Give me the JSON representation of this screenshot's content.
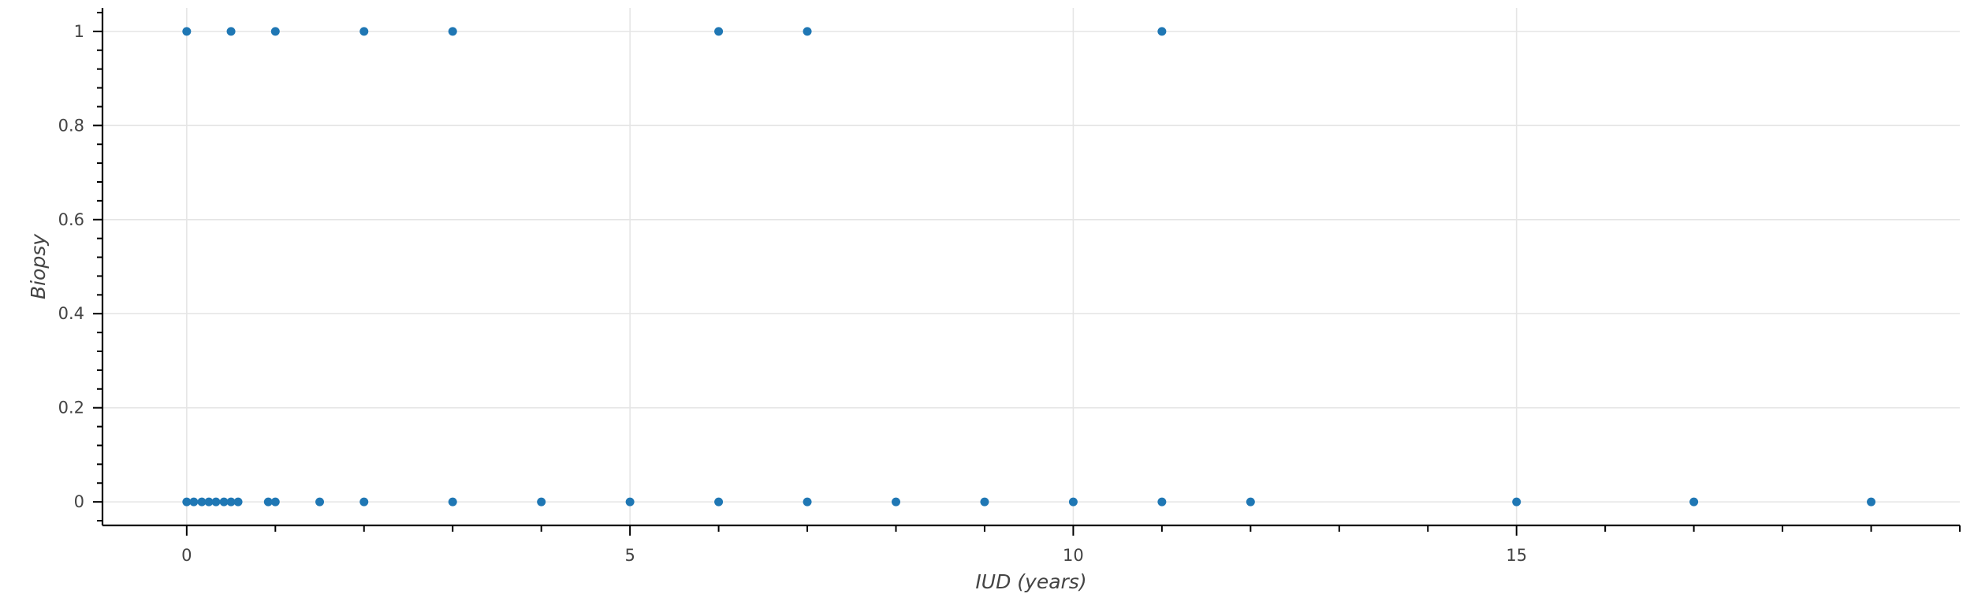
{
  "chart_data": {
    "type": "scatter",
    "title": "",
    "xlabel": "IUD (years)",
    "ylabel": "Biopsy",
    "xlim": [
      -0.95,
      20.0
    ],
    "ylim": [
      -0.05,
      1.05
    ],
    "x_ticks": [
      0,
      5,
      10,
      15
    ],
    "x_minor_step": 1,
    "y_ticks": [
      0,
      0.2,
      0.4,
      0.6,
      0.8,
      1
    ],
    "y_minor_step": 0.04,
    "grid": true,
    "legend": "none",
    "marker_color": "#1f77b4",
    "series": [
      {
        "x": [
          0,
          0.08,
          0.17,
          0.25,
          0.33,
          0.42,
          0.5,
          0.58,
          0.92,
          1,
          1.5,
          2,
          3,
          4,
          5,
          6,
          7,
          8,
          9,
          10,
          11,
          12,
          15,
          17,
          19,
          0,
          0.5,
          1,
          2,
          3,
          6,
          7,
          11
        ],
        "y": [
          0,
          0,
          0,
          0,
          0,
          0,
          0,
          0,
          0,
          0,
          0,
          0,
          0,
          0,
          0,
          0,
          0,
          0,
          0,
          0,
          0,
          0,
          0,
          0,
          0,
          1,
          1,
          1,
          1,
          1,
          1,
          1,
          1
        ]
      }
    ]
  }
}
